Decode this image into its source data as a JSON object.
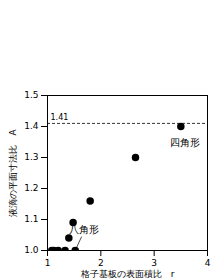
{
  "chart_data": {
    "type": "scatter",
    "x_label": "格子基板の表面積比　r",
    "y_label": "液滴の平面寸法比　A",
    "x": [
      1.08,
      1.12,
      1.2,
      1.33,
      1.4,
      1.48,
      1.52,
      1.8,
      2.65,
      3.5
    ],
    "values": [
      1.0,
      1.0,
      1.0,
      1.0,
      1.04,
      1.09,
      1.0,
      1.16,
      1.3,
      1.4
    ],
    "color": "#000000",
    "marker": "circle",
    "xlim": [
      1,
      4
    ],
    "xticks": [
      1,
      2,
      3,
      4
    ],
    "ylim": [
      1.0,
      1.5
    ],
    "yticks": [
      {
        "value": 1.0,
        "label": "1.0"
      },
      {
        "value": 1.1,
        "label": "1.1"
      },
      {
        "value": 1.2,
        "label": "1.2"
      },
      {
        "value": 1.3,
        "label": "1.3"
      },
      {
        "value": 1.4,
        "label": "1.4"
      },
      {
        "value": 1.5,
        "label": "1.5"
      }
    ],
    "grid": false,
    "reference_line": {
      "value": 1.41,
      "label": "1.41",
      "line_style": "dashed"
    },
    "annotations": [
      {
        "text": "四角形",
        "x": 3.5,
        "y": 1.4
      },
      {
        "text": "八角形",
        "x": 1.52,
        "y": 1.0
      }
    ]
  }
}
